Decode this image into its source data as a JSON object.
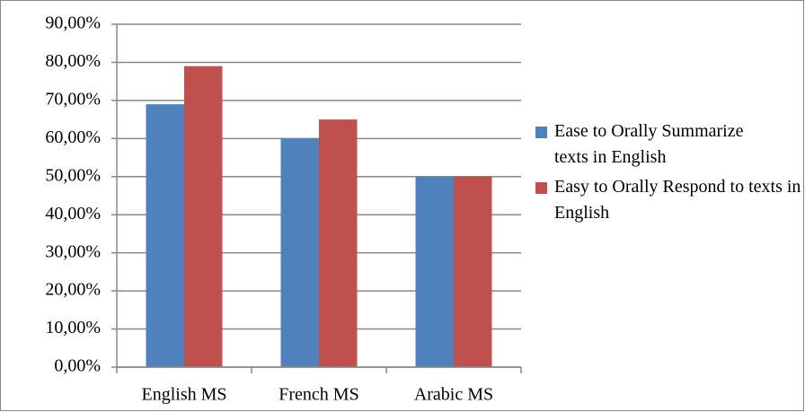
{
  "chart_data": {
    "type": "bar",
    "categories": [
      "English MS",
      "French MS",
      "Arabic MS"
    ],
    "series": [
      {
        "name": "Ease to Orally Summarize texts in English",
        "color": "#4f81bd",
        "values": [
          69,
          60,
          50
        ]
      },
      {
        "name": "Easy to Orally Respond to texts in English",
        "color": "#c0504d",
        "values": [
          79,
          65,
          50
        ]
      }
    ],
    "ylim": [
      0,
      90
    ],
    "yticks": [
      {
        "value": 0,
        "label": "0,00%"
      },
      {
        "value": 10,
        "label": "10,00%"
      },
      {
        "value": 20,
        "label": "20,00%"
      },
      {
        "value": 30,
        "label": "30,00%"
      },
      {
        "value": 40,
        "label": "40,00%"
      },
      {
        "value": 50,
        "label": "50,00%"
      },
      {
        "value": 60,
        "label": "60,00%"
      },
      {
        "value": 70,
        "label": "70,00%"
      },
      {
        "value": 80,
        "label": "80,00%"
      },
      {
        "value": 90,
        "label": "90,00%"
      }
    ],
    "grid": true,
    "legend": "right"
  }
}
